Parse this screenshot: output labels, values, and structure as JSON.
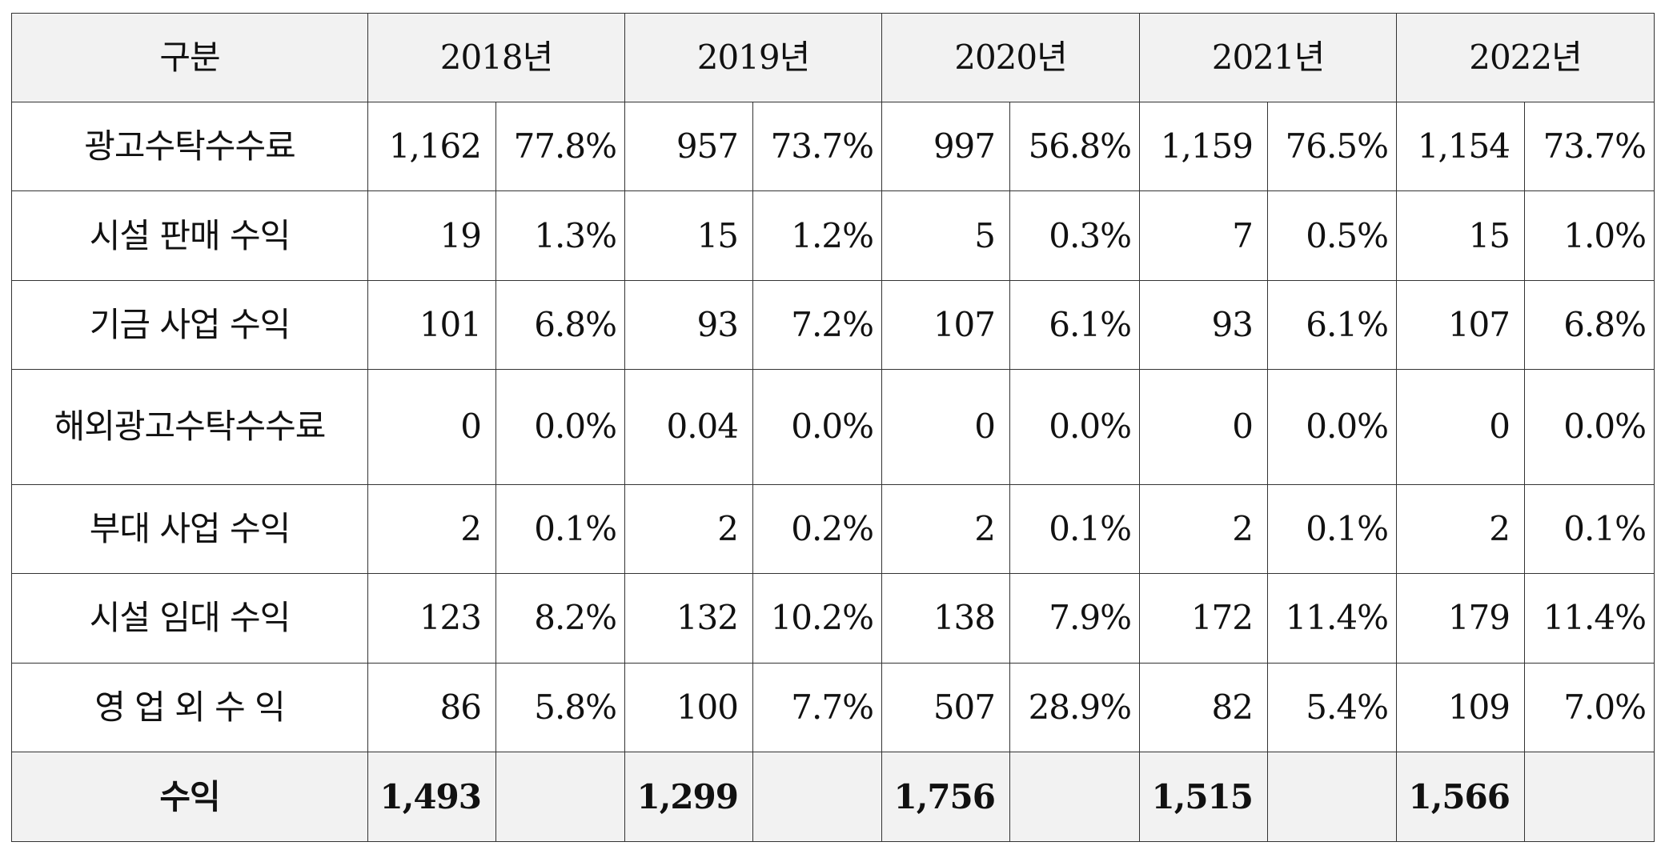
{
  "header": {
    "category": "구분",
    "years": [
      "2018년",
      "2019년",
      "2020년",
      "2021년",
      "2022년"
    ]
  },
  "rows": [
    {
      "label": "광고수탁수수료",
      "cells": [
        [
          "1,162",
          "77.8%"
        ],
        [
          "957",
          "73.7%"
        ],
        [
          "997",
          "56.8%"
        ],
        [
          "1,159",
          "76.5%"
        ],
        [
          "1,154",
          "73.7%"
        ]
      ]
    },
    {
      "label": "시설 판매 수익",
      "cells": [
        [
          "19",
          "1.3%"
        ],
        [
          "15",
          "1.2%"
        ],
        [
          "5",
          "0.3%"
        ],
        [
          "7",
          "0.5%"
        ],
        [
          "15",
          "1.0%"
        ]
      ]
    },
    {
      "label": "기금 사업 수익",
      "cells": [
        [
          "101",
          "6.8%"
        ],
        [
          "93",
          "7.2%"
        ],
        [
          "107",
          "6.1%"
        ],
        [
          "93",
          "6.1%"
        ],
        [
          "107",
          "6.8%"
        ]
      ]
    },
    {
      "label": "해외광고수탁수수료",
      "cells": [
        [
          "0",
          "0.0%"
        ],
        [
          "0.04",
          "0.0%"
        ],
        [
          "0",
          "0.0%"
        ],
        [
          "0",
          "0.0%"
        ],
        [
          "0",
          "0.0%"
        ]
      ]
    },
    {
      "label": "부대 사업 수익",
      "cells": [
        [
          "2",
          "0.1%"
        ],
        [
          "2",
          "0.2%"
        ],
        [
          "2",
          "0.1%"
        ],
        [
          "2",
          "0.1%"
        ],
        [
          "2",
          "0.1%"
        ]
      ]
    },
    {
      "label": "시설 임대 수익",
      "cells": [
        [
          "123",
          "8.2%"
        ],
        [
          "132",
          "10.2%"
        ],
        [
          "138",
          "7.9%"
        ],
        [
          "172",
          "11.4%"
        ],
        [
          "179",
          "11.4%"
        ]
      ]
    },
    {
      "label": "영 업 외 수 익",
      "cells": [
        [
          "86",
          "5.8%"
        ],
        [
          "100",
          "7.7%"
        ],
        [
          "507",
          "28.9%"
        ],
        [
          "82",
          "5.4%"
        ],
        [
          "109",
          "7.0%"
        ]
      ]
    }
  ],
  "total": {
    "label": "수익",
    "values": [
      "1,493",
      "1,299",
      "1,756",
      "1,515",
      "1,566"
    ]
  }
}
